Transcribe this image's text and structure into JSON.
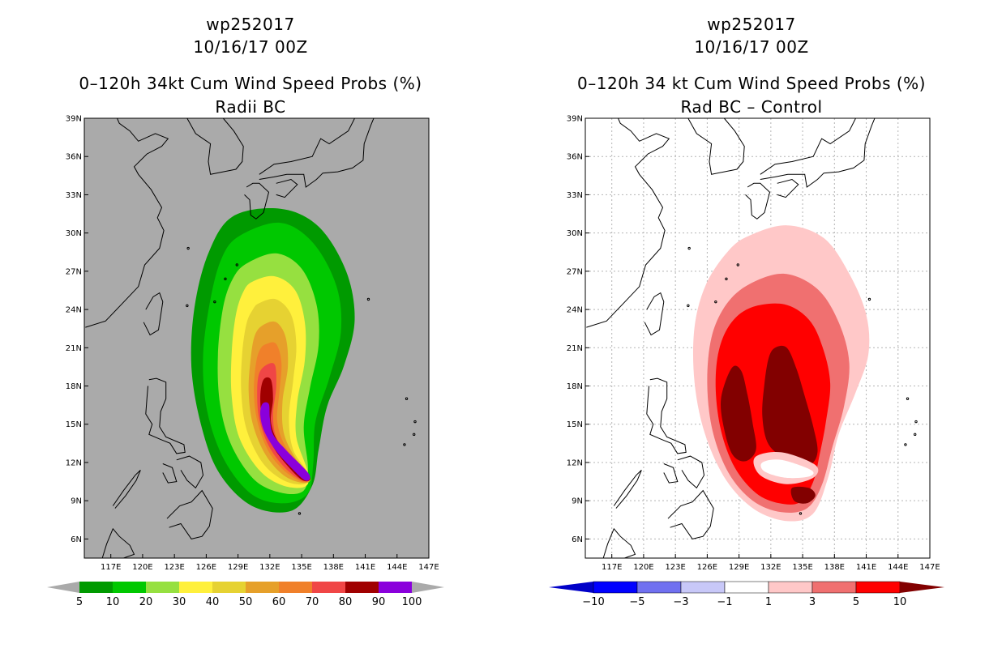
{
  "chart_data": [
    {
      "type": "heatmap",
      "storm_id": "wp252017",
      "date": "10/16/17 00Z",
      "title": "0–120h 34kt Cum Wind Speed Probs (%)",
      "subtitle": "Radii BC",
      "background": "#aaaaaa",
      "x_ticks": [
        "117E",
        "120E",
        "123E",
        "126E",
        "129E",
        "132E",
        "135E",
        "138E",
        "141E",
        "144E",
        "147E"
      ],
      "y_ticks": [
        "6N",
        "9N",
        "12N",
        "15N",
        "18N",
        "21N",
        "24N",
        "27N",
        "30N",
        "33N",
        "36N",
        "39N"
      ],
      "xlim": [
        114.5,
        147
      ],
      "ylim": [
        4.5,
        39
      ],
      "colorbar": {
        "labels": [
          "5",
          "10",
          "20",
          "30",
          "40",
          "50",
          "60",
          "70",
          "80",
          "90",
          "100"
        ],
        "colors": [
          "#aaaaaa",
          "#009a00",
          "#00c800",
          "#96e040",
          "#fff03c",
          "#e6d232",
          "#e6a02a",
          "#f0802a",
          "#f04646",
          "#a00000",
          "#8a00dc",
          "#aaaaaa"
        ]
      },
      "levels": [
        5,
        10,
        20,
        30,
        40,
        50,
        60,
        70,
        80,
        90
      ],
      "feature": {
        "center_lon": 132.0,
        "center_lat": 19.0,
        "tip_lon": 135.8,
        "tip_lat": 10.6
      }
    },
    {
      "type": "heatmap",
      "storm_id": "wp252017",
      "date": "10/16/17 00Z",
      "title": "0–120h 34 kt Cum Wind Speed Probs (%)",
      "subtitle": "Rad BC – Control",
      "background": "#ffffff",
      "x_ticks": [
        "117E",
        "120E",
        "123E",
        "126E",
        "129E",
        "132E",
        "135E",
        "138E",
        "141E",
        "144E",
        "147E"
      ],
      "y_ticks": [
        "6N",
        "9N",
        "12N",
        "15N",
        "18N",
        "21N",
        "24N",
        "27N",
        "30N",
        "33N",
        "36N",
        "39N"
      ],
      "xlim": [
        114.5,
        147
      ],
      "ylim": [
        4.5,
        39
      ],
      "colorbar": {
        "labels": [
          "−10",
          "−5",
          "−3",
          "−1",
          "1",
          "3",
          "5",
          "10"
        ],
        "colors": [
          "#0000c8",
          "#0000ff",
          "#7070f0",
          "#c8c8f8",
          "#ffffff",
          "#ffc8c8",
          "#f07070",
          "#ff0000",
          "#820000"
        ]
      },
      "levels": [
        1,
        3,
        5,
        10
      ]
    }
  ]
}
